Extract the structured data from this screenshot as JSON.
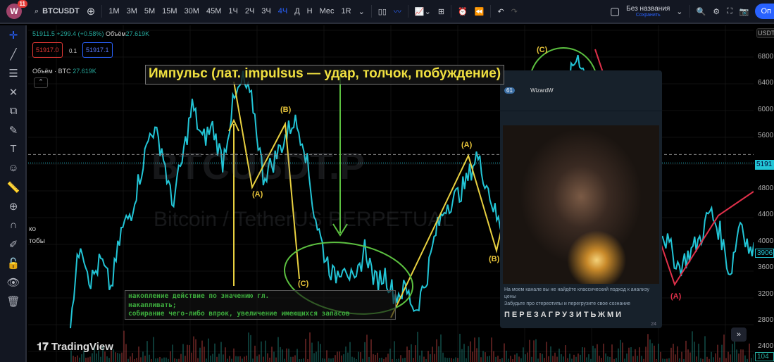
{
  "topbar": {
    "logo": "W",
    "notifications": "11",
    "symbol": "BTCUSDT",
    "intervals": [
      "1М",
      "3М",
      "5М",
      "15М",
      "30М",
      "45М",
      "1Ч",
      "2Ч",
      "3Ч",
      "4Ч",
      "Д",
      "Н",
      "Мес",
      "1R"
    ],
    "active_interval": "4Ч",
    "layout_name": "Без названия",
    "save_label": "Сохранить",
    "publish_label": "Оп"
  },
  "legend": {
    "ohlc": "51911.5 +299.4 (+0.58%)",
    "volume_label": "Объём",
    "volume": "27.619K",
    "sell": "51917.0",
    "spread": "0.1",
    "buy": "51917.1",
    "volume_line": "Объём · BTC",
    "volume_line_value": "27.619K"
  },
  "watermark": {
    "symbol": "BTCUSDT.P",
    "name": "Bitcoin / TetherUS PERPETUAL"
  },
  "annotations": {
    "title": "Импульс (лат. impulsus — удар, толчок, побуждение)",
    "note": [
      "накопление действие по значению гл.",
      "накапливать;",
      "собирание чего-либо впрок, увеличение имеющихся запасов"
    ],
    "waves": [
      "(A)",
      "(B)",
      "(C)",
      "(C)",
      "(A)",
      "(B)",
      "(C)",
      "(A)"
    ],
    "side_text": [
      "ко",
      "тобы"
    ]
  },
  "telegram": {
    "channel": "WizardW",
    "msg1": "На моем канале вы не найдёте классический подход к анализу цены",
    "msg2": "Забудьте про стереотипы и перегрузите свое сознание",
    "shout": "ПЕРЕЗАГРУЗИТЬЖМИ",
    "views": "24"
  },
  "axis": {
    "currency": "USDT",
    "labels": [
      "6800",
      "6400",
      "6000",
      "5600",
      "4800",
      "4400",
      "4000",
      "3600",
      "3200",
      "2800",
      "2400"
    ],
    "price_tag": "5191",
    "low_tag": "3906",
    "vol_tag": "104"
  },
  "brand": "TradingView",
  "colors": {
    "price_line": "#22c5d6",
    "impulse": "#e8d040",
    "ellipse": "#5cc040",
    "trend": "#e0304a",
    "accent": "#2962ff"
  },
  "chart_data": {
    "type": "line",
    "ylim": [
      24000,
      70000
    ],
    "current_price": 51911.5,
    "values": [
      28500,
      40300,
      33900,
      37100,
      32800,
      41400,
      44600,
      51000,
      57400,
      54200,
      45600,
      52100,
      60600,
      55300,
      57400,
      52100,
      60600,
      64400,
      60600,
      49900,
      52100,
      55300,
      58500,
      55300,
      44600,
      38200,
      34400,
      37100,
      32800,
      39200,
      33900,
      35000,
      31700,
      32800,
      29600,
      33900,
      41400,
      45600,
      46700,
      48900,
      53100,
      48900,
      43500,
      40300,
      44600,
      51000,
      61700,
      66000,
      60600,
      63800,
      68600,
      63800,
      58500,
      56300,
      51000,
      49900,
      46700,
      44600,
      42400,
      39200,
      36000,
      38200,
      40300,
      44600,
      41400,
      35000,
      43500,
      38200,
      38700
    ]
  }
}
